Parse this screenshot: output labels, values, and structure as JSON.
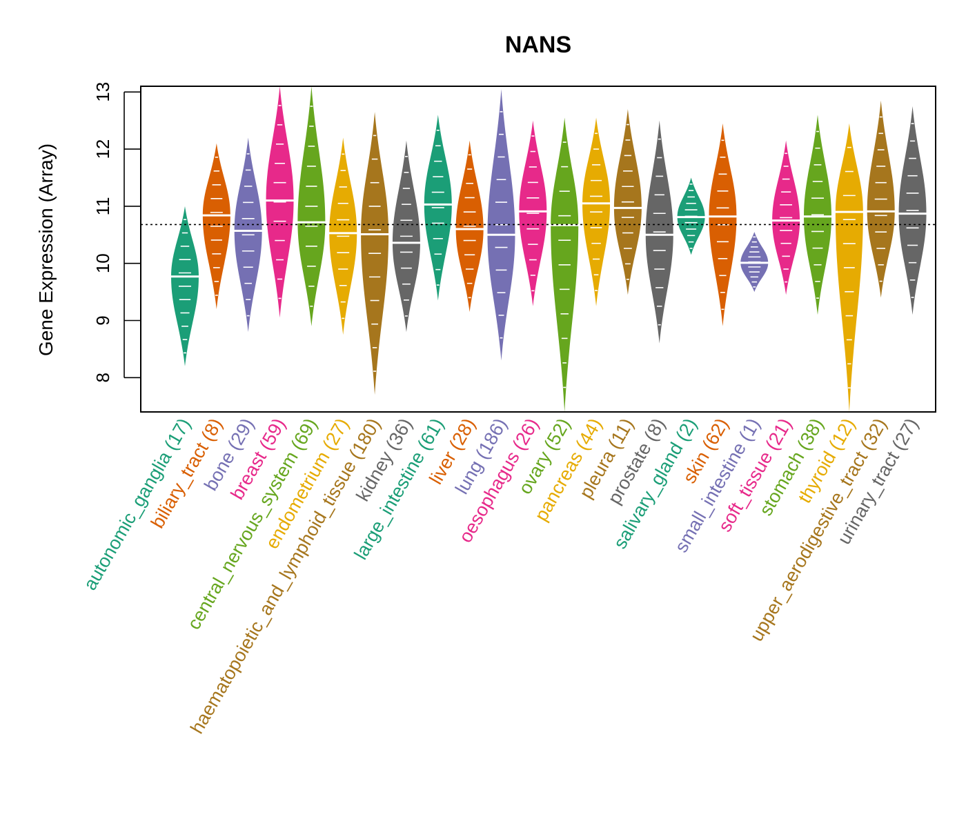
{
  "chart_data": {
    "type": "beanplot",
    "title": "NANS",
    "ylabel": "Gene Expression (Array)",
    "xlabel": "",
    "ylim": [
      7.4,
      13.1
    ],
    "yticks": [
      8,
      9,
      10,
      11,
      12,
      13
    ],
    "reference_line": 10.68,
    "categories": [
      {
        "label": "autonomic_ganglia (17)",
        "color": "#1B9E77",
        "median": 9.77,
        "min": 8.2,
        "max": 11.0
      },
      {
        "label": "biliary_tract (8)",
        "color": "#D95F02",
        "median": 10.84,
        "min": 9.2,
        "max": 12.1
      },
      {
        "label": "bone (29)",
        "color": "#7570B3",
        "median": 10.57,
        "min": 8.8,
        "max": 12.2
      },
      {
        "label": "breast (59)",
        "color": "#E7298A",
        "median": 11.1,
        "min": 9.05,
        "max": 13.1
      },
      {
        "label": "central_nervous_system (69)",
        "color": "#66A61E",
        "median": 10.72,
        "min": 8.9,
        "max": 13.1
      },
      {
        "label": "endometrium (27)",
        "color": "#E6AB02",
        "median": 10.53,
        "min": 8.75,
        "max": 12.2
      },
      {
        "label": "haematopoietic_and_lymphoid_tissue (180)",
        "color": "#A6761D",
        "median": 10.51,
        "min": 7.7,
        "max": 12.65
      },
      {
        "label": "kidney (36)",
        "color": "#666666",
        "median": 10.36,
        "min": 8.8,
        "max": 12.15
      },
      {
        "label": "large_intestine (61)",
        "color": "#1B9E77",
        "median": 11.03,
        "min": 9.35,
        "max": 12.6
      },
      {
        "label": "liver (28)",
        "color": "#D95F02",
        "median": 10.6,
        "min": 9.15,
        "max": 12.15
      },
      {
        "label": "lung (186)",
        "color": "#7570B3",
        "median": 10.5,
        "min": 8.3,
        "max": 13.05
      },
      {
        "label": "oesophagus (26)",
        "color": "#E7298A",
        "median": 10.91,
        "min": 9.25,
        "max": 12.5
      },
      {
        "label": "ovary (52)",
        "color": "#66A61E",
        "median": 10.67,
        "min": 7.4,
        "max": 12.55
      },
      {
        "label": "pancreas (44)",
        "color": "#E6AB02",
        "median": 11.05,
        "min": 9.25,
        "max": 12.55
      },
      {
        "label": "pleura (11)",
        "color": "#A6761D",
        "median": 10.97,
        "min": 9.45,
        "max": 12.7
      },
      {
        "label": "prostate (8)",
        "color": "#666666",
        "median": 10.5,
        "min": 8.6,
        "max": 12.5
      },
      {
        "label": "salivary_gland (2)",
        "color": "#1B9E77",
        "median": 10.81,
        "min": 10.15,
        "max": 11.5
      },
      {
        "label": "skin (62)",
        "color": "#D95F02",
        "median": 10.82,
        "min": 8.9,
        "max": 12.45
      },
      {
        "label": "small_intestine (1)",
        "color": "#7570B3",
        "median": 10.01,
        "min": 9.5,
        "max": 10.55
      },
      {
        "label": "soft_tissue (21)",
        "color": "#E7298A",
        "median": 10.75,
        "min": 9.45,
        "max": 12.15
      },
      {
        "label": "stomach (38)",
        "color": "#66A61E",
        "median": 10.82,
        "min": 9.1,
        "max": 12.6
      },
      {
        "label": "thyroid (12)",
        "color": "#E6AB02",
        "median": 10.9,
        "min": 7.4,
        "max": 12.45
      },
      {
        "label": "upper_aerodigestive_tract (32)",
        "color": "#A6761D",
        "median": 10.91,
        "min": 9.4,
        "max": 12.85
      },
      {
        "label": "urinary_tract (27)",
        "color": "#666666",
        "median": 10.87,
        "min": 9.1,
        "max": 12.75
      }
    ]
  }
}
